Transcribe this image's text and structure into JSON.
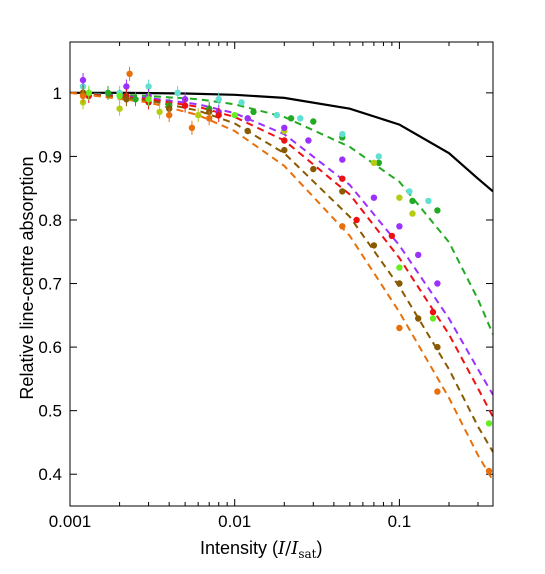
{
  "chart_data": {
    "type": "scatter",
    "title": "",
    "xlabel": "Intensity (I/I_sat)",
    "xlabel_parts": {
      "prefix": "Intensity (",
      "italic_main": "I",
      "slash": "/",
      "italic_sub_main": "I",
      "subscript": "sat",
      "suffix": ")"
    },
    "ylabel": "Relative line-centre absorption",
    "xscale": "log",
    "xlim": [
      0.001,
      0.37
    ],
    "ylim": [
      0.35,
      1.08
    ],
    "xticks": [
      0.001,
      0.01,
      0.1
    ],
    "xtick_labels": [
      "0.001",
      "0.01",
      "0.1"
    ],
    "yticks": [
      0.4,
      0.5,
      0.6,
      0.7,
      0.8,
      0.9,
      1.0
    ],
    "ytick_labels": [
      "0.4",
      "0.5",
      "0.6",
      "0.7",
      "0.8",
      "0.9",
      "1"
    ],
    "grid": false,
    "legend": "none",
    "reference_curve": {
      "color": "#000000",
      "style": "solid",
      "points": [
        [
          0.001,
          1.0
        ],
        [
          0.002,
          1.0
        ],
        [
          0.005,
          0.999
        ],
        [
          0.01,
          0.997
        ],
        [
          0.02,
          0.992
        ],
        [
          0.05,
          0.975
        ],
        [
          0.1,
          0.95
        ],
        [
          0.2,
          0.905
        ],
        [
          0.3,
          0.865
        ],
        [
          0.37,
          0.845
        ]
      ]
    },
    "series": [
      {
        "color": "#22aa22",
        "fit": [
          [
            0.001,
            1.0
          ],
          [
            0.003,
            0.995
          ],
          [
            0.006,
            0.99
          ],
          [
            0.01,
            0.982
          ],
          [
            0.02,
            0.962
          ],
          [
            0.05,
            0.915
          ],
          [
            0.1,
            0.86
          ],
          [
            0.2,
            0.765
          ],
          [
            0.3,
            0.675
          ],
          [
            0.37,
            0.62
          ]
        ],
        "points": [
          [
            0.0012,
            1.0
          ],
          [
            0.0017,
            1.0
          ],
          [
            0.0025,
            0.99
          ],
          [
            0.004,
            0.98
          ],
          [
            0.007,
            0.975
          ],
          [
            0.013,
            0.97
          ],
          [
            0.022,
            0.96
          ],
          [
            0.03,
            0.955
          ],
          [
            0.045,
            0.93
          ],
          [
            0.075,
            0.89
          ],
          [
            0.12,
            0.83
          ],
          [
            0.17,
            0.815
          ]
        ]
      },
      {
        "color": "#5fe0d0",
        "fit": null,
        "points": [
          [
            0.0012,
            1.01
          ],
          [
            0.002,
            1.0
          ],
          [
            0.003,
            1.01
          ],
          [
            0.0045,
            1.0
          ],
          [
            0.008,
            0.99
          ],
          [
            0.011,
            0.985
          ],
          [
            0.018,
            0.965
          ],
          [
            0.025,
            0.96
          ],
          [
            0.045,
            0.935
          ],
          [
            0.075,
            0.9
          ],
          [
            0.115,
            0.845
          ],
          [
            0.15,
            0.83
          ]
        ]
      },
      {
        "color": "#b5cc10",
        "fit": null,
        "points": [
          [
            0.0012,
            0.985
          ],
          [
            0.002,
            0.975
          ],
          [
            0.0035,
            0.97
          ],
          [
            0.006,
            0.965
          ],
          [
            0.012,
            0.96
          ],
          [
            0.02,
            0.94
          ],
          [
            0.07,
            0.89
          ],
          [
            0.1,
            0.835
          ],
          [
            0.12,
            0.81
          ]
        ]
      },
      {
        "color": "#9b30ff",
        "fit": [
          [
            0.001,
            1.0
          ],
          [
            0.003,
            0.992
          ],
          [
            0.006,
            0.982
          ],
          [
            0.01,
            0.968
          ],
          [
            0.02,
            0.935
          ],
          [
            0.05,
            0.855
          ],
          [
            0.1,
            0.76
          ],
          [
            0.2,
            0.645
          ],
          [
            0.3,
            0.565
          ],
          [
            0.37,
            0.525
          ]
        ],
        "points": [
          [
            0.0012,
            1.02
          ],
          [
            0.0022,
            1.01
          ],
          [
            0.003,
            0.995
          ],
          [
            0.005,
            0.99
          ],
          [
            0.008,
            0.97
          ],
          [
            0.012,
            0.96
          ],
          [
            0.02,
            0.945
          ],
          [
            0.028,
            0.925
          ],
          [
            0.045,
            0.895
          ],
          [
            0.07,
            0.835
          ],
          [
            0.1,
            0.79
          ],
          [
            0.13,
            0.745
          ],
          [
            0.17,
            0.7
          ]
        ]
      },
      {
        "color": "#ee1111",
        "fit": [
          [
            0.001,
            1.0
          ],
          [
            0.003,
            0.99
          ],
          [
            0.006,
            0.978
          ],
          [
            0.01,
            0.962
          ],
          [
            0.02,
            0.925
          ],
          [
            0.05,
            0.84
          ],
          [
            0.1,
            0.74
          ],
          [
            0.2,
            0.62
          ],
          [
            0.3,
            0.535
          ],
          [
            0.37,
            0.49
          ]
        ],
        "points": [
          [
            0.0013,
            0.995
          ],
          [
            0.0022,
            0.995
          ],
          [
            0.003,
            0.985
          ],
          [
            0.005,
            0.98
          ],
          [
            0.008,
            0.965
          ],
          [
            0.02,
            0.925
          ],
          [
            0.045,
            0.865
          ],
          [
            0.055,
            0.8
          ],
          [
            0.09,
            0.775
          ],
          [
            0.16,
            0.655
          ]
        ]
      },
      {
        "color": "#66ee22",
        "fit": null,
        "points": [
          [
            0.0013,
            1.0
          ],
          [
            0.002,
            0.995
          ],
          [
            0.003,
            0.99
          ],
          [
            0.01,
            0.965
          ],
          [
            0.1,
            0.725
          ],
          [
            0.16,
            0.645
          ],
          [
            0.35,
            0.48
          ]
        ]
      },
      {
        "color": "#8a5a00",
        "fit": [
          [
            0.001,
            1.0
          ],
          [
            0.003,
            0.988
          ],
          [
            0.006,
            0.972
          ],
          [
            0.01,
            0.952
          ],
          [
            0.02,
            0.905
          ],
          [
            0.05,
            0.805
          ],
          [
            0.1,
            0.695
          ],
          [
            0.2,
            0.565
          ],
          [
            0.3,
            0.475
          ],
          [
            0.37,
            0.435
          ]
        ],
        "points": [
          [
            0.0012,
            1.0
          ],
          [
            0.0022,
            0.99
          ],
          [
            0.004,
            0.975
          ],
          [
            0.007,
            0.97
          ],
          [
            0.012,
            0.94
          ],
          [
            0.02,
            0.91
          ],
          [
            0.03,
            0.88
          ],
          [
            0.045,
            0.845
          ],
          [
            0.07,
            0.76
          ],
          [
            0.1,
            0.7
          ],
          [
            0.13,
            0.645
          ],
          [
            0.17,
            0.6
          ]
        ]
      },
      {
        "color": "#e8700a",
        "fit": [
          [
            0.001,
            1.0
          ],
          [
            0.003,
            0.985
          ],
          [
            0.006,
            0.965
          ],
          [
            0.01,
            0.94
          ],
          [
            0.02,
            0.885
          ],
          [
            0.05,
            0.775
          ],
          [
            0.1,
            0.655
          ],
          [
            0.2,
            0.52
          ],
          [
            0.3,
            0.43
          ],
          [
            0.37,
            0.39
          ]
        ],
        "points": [
          [
            0.0012,
            0.995
          ],
          [
            0.0023,
            1.03
          ],
          [
            0.004,
            0.965
          ],
          [
            0.0055,
            0.945
          ],
          [
            0.007,
            0.96
          ],
          [
            0.045,
            0.79
          ],
          [
            0.1,
            0.63
          ],
          [
            0.17,
            0.53
          ],
          [
            0.35,
            0.405
          ]
        ]
      }
    ]
  }
}
